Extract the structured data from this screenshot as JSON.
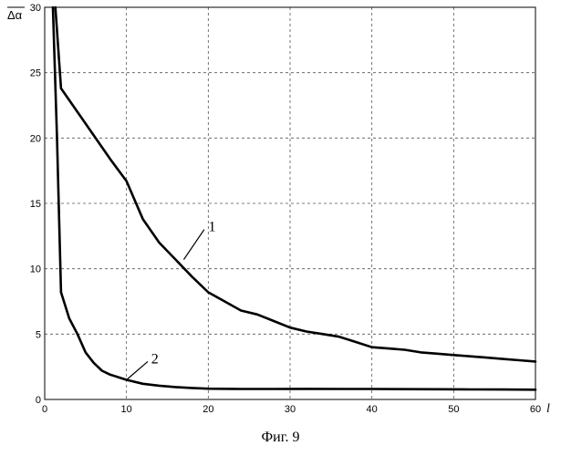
{
  "chart_data": {
    "type": "line",
    "title": "",
    "xlabel": "l",
    "ylabel": "Δα",
    "xlim": [
      0,
      60
    ],
    "ylim": [
      0,
      30
    ],
    "grid": true,
    "x_ticks": [
      "0",
      "10",
      "20",
      "30",
      "40",
      "50",
      "60"
    ],
    "y_ticks": [
      "0",
      "5",
      "10",
      "15",
      "20",
      "25",
      "30"
    ],
    "series": [
      {
        "name": "1",
        "color": "#000000",
        "points": [
          [
            1.3,
            30
          ],
          [
            2,
            23.8
          ],
          [
            4,
            22.0
          ],
          [
            6,
            20.2
          ],
          [
            8,
            18.4
          ],
          [
            10,
            16.7
          ],
          [
            12,
            13.8
          ],
          [
            14,
            12.0
          ],
          [
            16,
            10.7
          ],
          [
            18,
            9.4
          ],
          [
            20,
            8.2
          ],
          [
            22,
            7.5
          ],
          [
            24,
            6.8
          ],
          [
            26,
            6.5
          ],
          [
            28,
            6.0
          ],
          [
            30,
            5.5
          ],
          [
            32,
            5.2
          ],
          [
            34,
            5.0
          ],
          [
            36,
            4.8
          ],
          [
            38,
            4.4
          ],
          [
            40,
            4.0
          ],
          [
            42,
            3.9
          ],
          [
            44,
            3.8
          ],
          [
            46,
            3.6
          ],
          [
            48,
            3.5
          ],
          [
            50,
            3.4
          ],
          [
            52,
            3.3
          ],
          [
            54,
            3.2
          ],
          [
            56,
            3.1
          ],
          [
            58,
            3.0
          ],
          [
            60,
            2.9
          ]
        ]
      },
      {
        "name": "2",
        "color": "#000000",
        "points": [
          [
            1,
            30
          ],
          [
            1.5,
            20.0
          ],
          [
            2,
            8.2
          ],
          [
            3,
            6.2
          ],
          [
            4,
            5.0
          ],
          [
            5,
            3.6
          ],
          [
            6,
            2.8
          ],
          [
            7,
            2.2
          ],
          [
            8,
            1.9
          ],
          [
            9,
            1.7
          ],
          [
            10,
            1.5
          ],
          [
            12,
            1.2
          ],
          [
            14,
            1.05
          ],
          [
            16,
            0.95
          ],
          [
            18,
            0.88
          ],
          [
            20,
            0.82
          ],
          [
            24,
            0.8
          ],
          [
            28,
            0.8
          ],
          [
            32,
            0.81
          ],
          [
            36,
            0.8
          ],
          [
            40,
            0.8
          ],
          [
            44,
            0.79
          ],
          [
            48,
            0.78
          ],
          [
            52,
            0.77
          ],
          [
            56,
            0.76
          ],
          [
            60,
            0.75
          ]
        ]
      }
    ],
    "annotations": [
      {
        "text": "1",
        "series": "1"
      },
      {
        "text": "2",
        "series": "2"
      }
    ]
  },
  "caption": "Фиг. 9"
}
